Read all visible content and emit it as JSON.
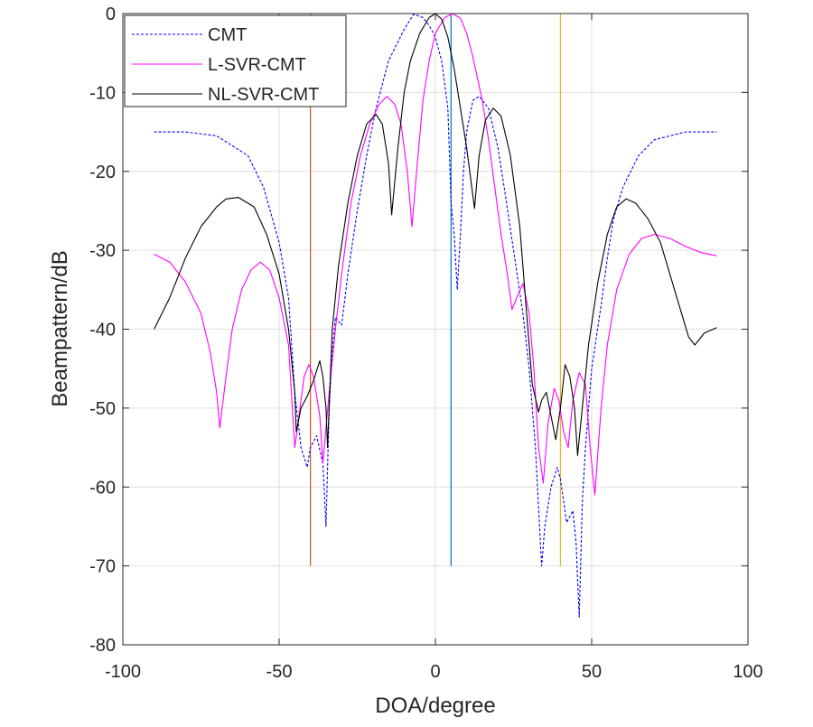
{
  "chart_data": {
    "type": "line",
    "xlabel": "DOA/degree",
    "ylabel": "Beampattern/dB",
    "xlim": [
      -100,
      100
    ],
    "ylim": [
      -80,
      0
    ],
    "xticks": [
      -100,
      -50,
      0,
      50,
      100
    ],
    "yticks": [
      0,
      -10,
      -20,
      -30,
      -40,
      -50,
      -60,
      -70,
      -80
    ],
    "grid": true,
    "legend_position": "top-left",
    "vertical_lines": [
      {
        "x": -40,
        "y_range": [
          -70,
          0
        ],
        "color": "#D95319"
      },
      {
        "x": 5,
        "y_range": [
          -70,
          0
        ],
        "color": "#0072BD"
      },
      {
        "x": 40,
        "y_range": [
          -70,
          0
        ],
        "color": "#EDB120"
      }
    ],
    "series": [
      {
        "name": "CMT",
        "color": "#0000FF",
        "dashed": true,
        "x": [
          -90,
          -80,
          -70,
          -60,
          -55,
          -50,
          -47,
          -45,
          -43,
          -41,
          -40,
          -38,
          -36,
          -35,
          -34,
          -33,
          -32,
          -30,
          -28,
          -25,
          -22,
          -19,
          -15,
          -10,
          -7,
          -4,
          -2,
          0,
          2,
          4,
          5,
          6,
          7,
          8,
          9,
          10,
          12,
          14,
          17,
          20,
          22,
          25,
          28,
          30,
          32,
          34,
          35,
          37,
          39,
          40,
          42,
          44,
          45,
          46,
          47,
          48,
          50,
          53,
          55,
          57,
          60,
          65,
          70,
          80,
          90
        ],
        "y": [
          -15,
          -15,
          -15.5,
          -18,
          -22,
          -29,
          -36,
          -48,
          -55,
          -57.5,
          -55,
          -53.5,
          -57,
          -65,
          -50,
          -43,
          -38.5,
          -39.5,
          -33,
          -25,
          -18,
          -12,
          -6,
          -2,
          -0.1,
          -0.5,
          -1.5,
          -3,
          -6,
          -12,
          -24,
          -28,
          -35,
          -28,
          -20,
          -15,
          -11,
          -10.5,
          -12,
          -17,
          -22,
          -30,
          -38,
          -45,
          -55,
          -70,
          -65,
          -60,
          -57.5,
          -59,
          -64.5,
          -63,
          -67,
          -76.5,
          -62,
          -55,
          -45,
          -37,
          -31,
          -26,
          -22,
          -18,
          -16,
          -15,
          -15
        ]
      },
      {
        "name": "L-SVR-CMT",
        "color": "#FF00FF",
        "dashed": false,
        "x": [
          -90,
          -85,
          -80,
          -75,
          -72,
          -70,
          -69,
          -67,
          -65,
          -62,
          -59,
          -56,
          -53,
          -50,
          -47,
          -45,
          -44,
          -42,
          -40.5,
          -39,
          -37,
          -36,
          -34,
          -32,
          -30,
          -27,
          -24,
          -21,
          -18,
          -15.5,
          -13,
          -11,
          -9,
          -7.5,
          -6,
          -4,
          -2,
          0,
          3,
          5.5,
          8,
          10,
          12,
          15,
          17,
          19,
          21,
          23,
          24.5,
          26,
          28,
          30,
          31.5,
          33,
          34.5,
          36,
          38,
          39.5,
          41,
          42.5,
          44,
          46,
          48,
          49.5,
          51,
          53,
          55,
          58,
          62,
          66,
          70,
          75,
          80,
          85,
          90
        ],
        "y": [
          -30.5,
          -31.5,
          -34,
          -38,
          -43,
          -48,
          -52.5,
          -46,
          -40,
          -35,
          -32.5,
          -31.5,
          -32.5,
          -36,
          -42,
          -55,
          -52,
          -46,
          -44.5,
          -46,
          -51,
          -57,
          -48,
          -40,
          -33,
          -24,
          -18,
          -14,
          -11.5,
          -10.5,
          -11.5,
          -14,
          -20,
          -27,
          -20,
          -11,
          -6,
          -2.5,
          -0.5,
          0,
          -0.6,
          -2.5,
          -5.5,
          -11,
          -16,
          -22,
          -28,
          -33,
          -37.5,
          -36,
          -34.2,
          -38,
          -45,
          -55,
          -59.5,
          -52,
          -47.5,
          -49,
          -53,
          -55,
          -49,
          -45.5,
          -47,
          -55,
          -61,
          -50,
          -42,
          -35,
          -30.5,
          -28.5,
          -28,
          -28.5,
          -29.5,
          -30.3,
          -30.7
        ]
      },
      {
        "name": "NL-SVR-CMT",
        "color": "#000000",
        "dashed": false,
        "x": [
          -90,
          -85,
          -80,
          -75,
          -70,
          -67,
          -63,
          -58,
          -54,
          -50,
          -47,
          -45,
          -44.5,
          -43,
          -41,
          -39,
          -37,
          -36,
          -35,
          -34.5,
          -33,
          -31,
          -28,
          -25,
          -22,
          -19,
          -17,
          -15,
          -14,
          -12,
          -10,
          -8,
          -5,
          -2,
          0,
          2,
          4,
          6,
          8,
          10,
          12.5,
          14,
          16,
          18.5,
          21,
          24,
          27,
          29,
          31,
          33,
          34,
          35.5,
          37,
          38.5,
          40,
          41.5,
          43,
          44.5,
          45.5,
          47,
          49,
          52,
          55,
          58,
          61,
          64,
          68,
          72,
          75,
          78,
          81,
          83,
          86,
          90
        ],
        "y": [
          -40,
          -36,
          -31,
          -27,
          -24.5,
          -23.5,
          -23.3,
          -24.5,
          -28,
          -33,
          -40,
          -48,
          -53,
          -50,
          -48.5,
          -46.5,
          -44,
          -46,
          -50,
          -55,
          -40,
          -32,
          -24,
          -18,
          -14,
          -12.8,
          -14,
          -19,
          -25.5,
          -17,
          -10,
          -6,
          -2.5,
          -0.5,
          0,
          -0.7,
          -3,
          -7,
          -12,
          -17,
          -24.7,
          -18,
          -13.5,
          -12,
          -13,
          -18,
          -27,
          -37,
          -47,
          -50.5,
          -49,
          -48,
          -51,
          -54,
          -50,
          -44.5,
          -46,
          -50,
          -56,
          -50,
          -42,
          -34,
          -28,
          -24.5,
          -23.5,
          -24,
          -26,
          -29,
          -33,
          -37,
          -41,
          -42,
          -40.5,
          -39.8
        ]
      }
    ]
  }
}
